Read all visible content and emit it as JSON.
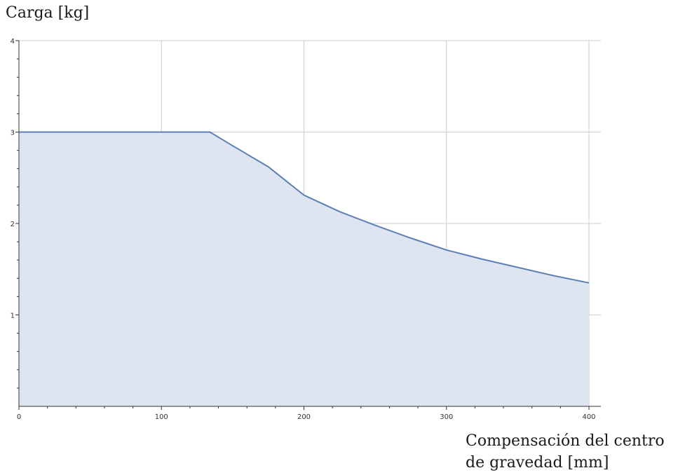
{
  "chart_data": {
    "type": "area",
    "ylabel": "Carga [kg]",
    "xlabel_lines": [
      "Compensación del centro",
      "de gravedad [mm]"
    ],
    "xlim": [
      0,
      400
    ],
    "ylim": [
      0,
      4
    ],
    "x_ticks": [
      0,
      100,
      200,
      300,
      400
    ],
    "x_tick_labels": [
      "0",
      "100",
      "200",
      "300",
      "400"
    ],
    "y_ticks": [
      1,
      2,
      3,
      4
    ],
    "y_tick_labels": [
      "1",
      "2",
      "3",
      "4"
    ],
    "grid": true,
    "series": [
      {
        "x": [
          0,
          50,
          100,
          134,
          150,
          175,
          200,
          225,
          250,
          275,
          300,
          325,
          350,
          375,
          400
        ],
        "values": [
          3.0,
          3.0,
          3.0,
          3.0,
          2.85,
          2.62,
          2.31,
          2.13,
          1.98,
          1.84,
          1.71,
          1.61,
          1.52,
          1.43,
          1.35
        ]
      }
    ],
    "colors": {
      "line": "#5b7fb6",
      "fill": "#dfe5f0",
      "grid": "#cccccc",
      "axis": "#333333"
    }
  }
}
